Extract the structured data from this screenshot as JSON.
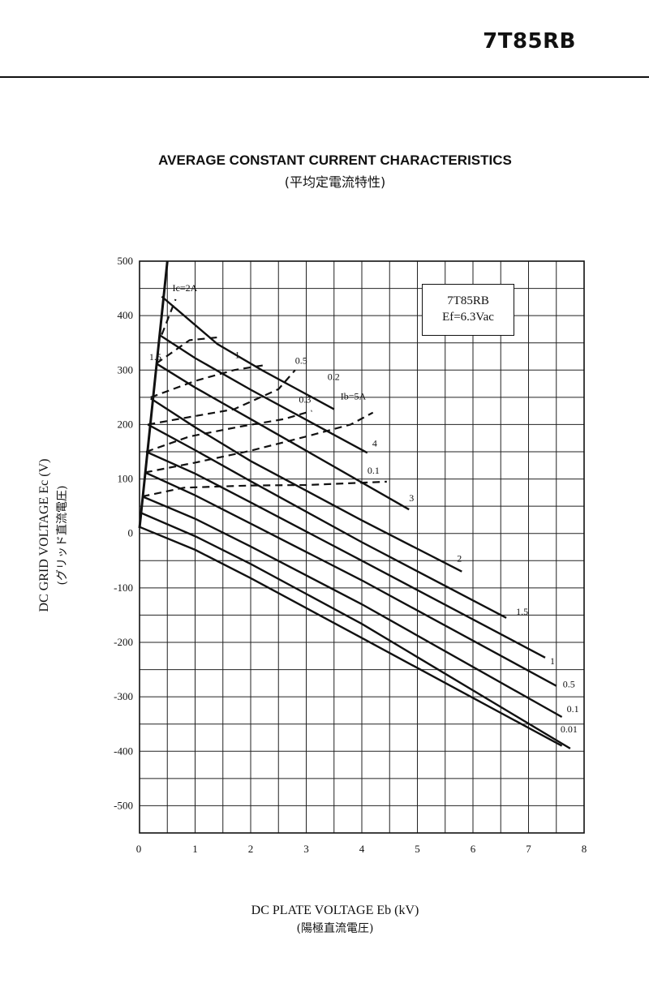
{
  "header": {
    "part_number": "7T85RB"
  },
  "title": "AVERAGE CONSTANT CURRENT CHARACTERISTICS",
  "subtitle": "(平均定電流特性)",
  "axes": {
    "ylabel": "DC GRID VOLTAGE   Ec (V)",
    "ylabel_jp": "(グリッド直流電圧)",
    "xlabel": "DC PLATE VOLTAGE   Eb (kV)",
    "xlabel_jp": "(陽極直流電圧)"
  },
  "legend": {
    "line1": "7T85RB",
    "line2": "Ef=6.3Vac"
  },
  "chart_data": {
    "type": "line",
    "title": "AVERAGE CONSTANT CURRENT CHARACTERISTICS",
    "xlabel": "DC PLATE VOLTAGE Eb (kV)",
    "ylabel": "DC GRID VOLTAGE Ec (V)",
    "xlim": [
      0,
      8
    ],
    "ylim": [
      -550,
      500
    ],
    "xticks": [
      "0",
      "1",
      "2",
      "3",
      "4",
      "5",
      "6",
      "7",
      "8"
    ],
    "yticks": [
      "500",
      "400",
      "300",
      "200",
      "100",
      "0",
      "-100",
      "-200",
      "-300",
      "-400",
      "-500"
    ],
    "ytick_values": [
      500,
      400,
      300,
      200,
      100,
      0,
      -100,
      -200,
      -300,
      -400,
      -500
    ],
    "grid": true,
    "boundary": {
      "points": [
        [
          0,
          10
        ],
        [
          0.5,
          500
        ]
      ]
    },
    "plate_current_series": [
      {
        "name": "5A",
        "label": "Ib=5A",
        "points": [
          [
            0.4,
            435
          ],
          [
            1.4,
            348
          ],
          [
            2.2,
            300
          ],
          [
            3.5,
            228
          ]
        ]
      },
      {
        "name": "4",
        "label": "4",
        "points": [
          [
            0.35,
            365
          ],
          [
            1.0,
            322
          ],
          [
            2.0,
            264
          ],
          [
            4.1,
            148
          ]
        ]
      },
      {
        "name": "3",
        "label": "3",
        "points": [
          [
            0.3,
            312
          ],
          [
            1.0,
            268
          ],
          [
            2.0,
            210
          ],
          [
            3.0,
            152
          ],
          [
            4.85,
            44
          ]
        ]
      },
      {
        "name": "2",
        "label": "2",
        "points": [
          [
            0.2,
            248
          ],
          [
            1.0,
            195
          ],
          [
            2.0,
            133
          ],
          [
            4.0,
            24
          ],
          [
            5.8,
            -70
          ]
        ]
      },
      {
        "name": "1.5",
        "label": "1.5",
        "points": [
          [
            0.15,
            200
          ],
          [
            1.0,
            153
          ],
          [
            2.0,
            96
          ],
          [
            4.0,
            -16
          ],
          [
            6.6,
            -155
          ]
        ]
      },
      {
        "name": "1",
        "label": "1",
        "points": [
          [
            0.12,
            150
          ],
          [
            1.0,
            110
          ],
          [
            2.0,
            57
          ],
          [
            4.0,
            -50
          ],
          [
            7.3,
            -228
          ]
        ]
      },
      {
        "name": "0.5",
        "label": "0.5",
        "points": [
          [
            0.1,
            112
          ],
          [
            1.0,
            70
          ],
          [
            2.0,
            18
          ],
          [
            4.0,
            -86
          ],
          [
            7.5,
            -280
          ]
        ]
      },
      {
        "name": "0.1",
        "label": "0.1",
        "points": [
          [
            0.05,
            68
          ],
          [
            1.0,
            27
          ],
          [
            2.0,
            -24
          ],
          [
            4.0,
            -130
          ],
          [
            7.6,
            -337
          ]
        ]
      },
      {
        "name": "0.01",
        "label": "0.01",
        "points": [
          [
            0.02,
            38
          ],
          [
            1.0,
            -5
          ],
          [
            2.0,
            -56
          ],
          [
            4.0,
            -166
          ],
          [
            7.75,
            -395
          ]
        ]
      },
      {
        "name": "0.01-base",
        "label": "",
        "points": [
          [
            0.0,
            12
          ],
          [
            1.0,
            -30
          ],
          [
            2.0,
            -82
          ],
          [
            4.0,
            -192
          ],
          [
            7.6,
            -390
          ]
        ]
      }
    ],
    "grid_current_series": [
      {
        "name": "Ic=2A",
        "label": "Ic=2A",
        "points": [
          [
            0.4,
            365
          ],
          [
            0.65,
            430
          ]
        ]
      },
      {
        "name": "1.5",
        "label": "1.5",
        "points": [
          [
            0.3,
            312
          ],
          [
            0.9,
            355
          ],
          [
            1.4,
            360
          ]
        ]
      },
      {
        "name": "1",
        "label": "1",
        "points": [
          [
            0.2,
            250
          ],
          [
            1.0,
            280
          ],
          [
            1.7,
            300
          ],
          [
            2.3,
            310
          ]
        ]
      },
      {
        "name": "0.5",
        "label": "0.5",
        "points": [
          [
            0.15,
            200
          ],
          [
            0.8,
            212
          ],
          [
            1.7,
            228
          ],
          [
            2.5,
            265
          ],
          [
            2.8,
            300
          ]
        ]
      },
      {
        "name": "0.3",
        "label": "0.3",
        "points": [
          [
            0.12,
            150
          ],
          [
            0.9,
            178
          ],
          [
            1.8,
            196
          ],
          [
            2.6,
            210
          ],
          [
            3.1,
            225
          ]
        ]
      },
      {
        "name": "0.2",
        "label": "0.2",
        "points": [
          [
            0.1,
            112
          ],
          [
            1.0,
            130
          ],
          [
            2.0,
            152
          ],
          [
            3.0,
            178
          ],
          [
            3.8,
            200
          ],
          [
            4.2,
            222
          ]
        ]
      },
      {
        "name": "0.1",
        "label": "0.1",
        "points": [
          [
            0.05,
            68
          ],
          [
            0.8,
            84
          ],
          [
            2.0,
            88
          ],
          [
            3.0,
            89
          ],
          [
            4.45,
            95
          ]
        ]
      }
    ]
  }
}
